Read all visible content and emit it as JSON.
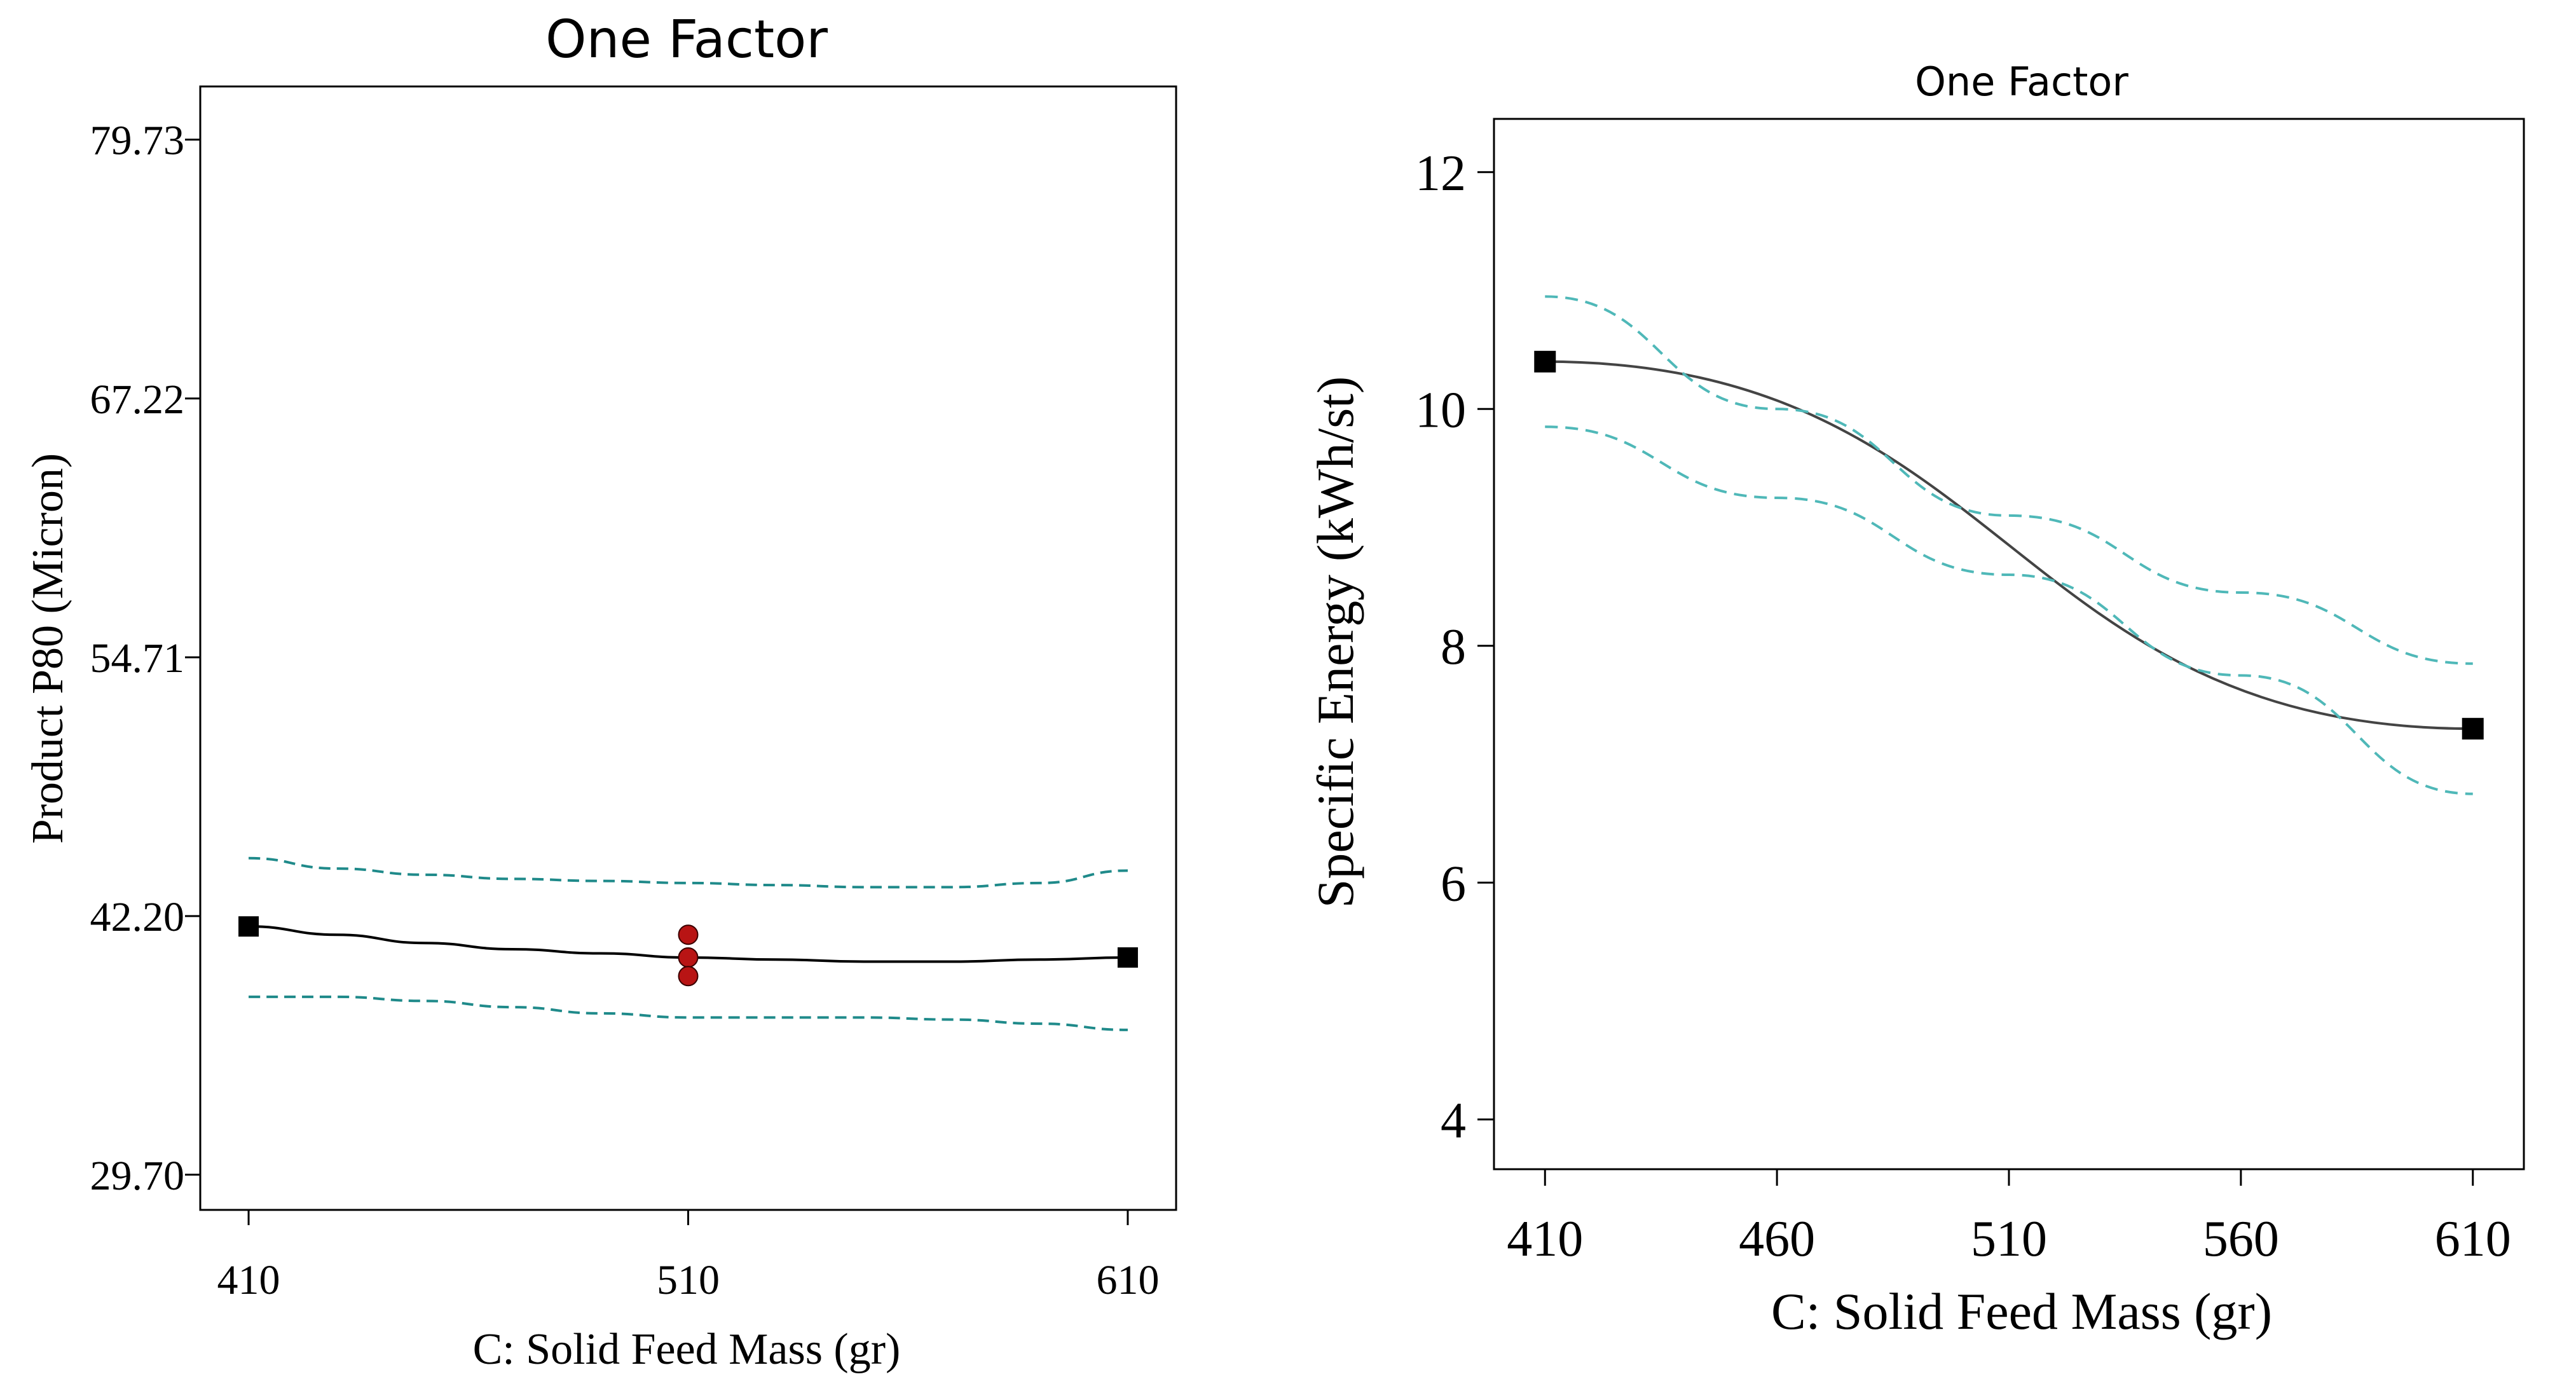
{
  "chart_data": [
    {
      "type": "line",
      "title": "One Factor",
      "xlabel": "C: Solid Feed Mass (gr)",
      "ylabel": "Product P80 (Micron)",
      "xlim": [
        399,
        621
      ],
      "ylim": [
        28.0,
        82.3
      ],
      "x_ticks": [
        "410",
        "510",
        "610"
      ],
      "y_ticks": [
        "29.70",
        "42.20",
        "54.71",
        "67.22",
        "79.73"
      ],
      "grid": false,
      "colors": {
        "prediction": "#000000",
        "confidence": "#1f8a8a",
        "design_points": "#b81414",
        "endpoints": "#000000"
      },
      "series": [
        {
          "x": [
            410,
            430,
            450,
            470,
            490,
            510,
            530,
            550,
            570,
            590,
            610
          ],
          "values": [
            41.7,
            41.3,
            40.9,
            40.6,
            40.4,
            40.2,
            40.1,
            40.0,
            40.0,
            40.1,
            40.2
          ]
        },
        {
          "x": [
            410,
            430,
            450,
            470,
            490,
            510,
            530,
            550,
            570,
            590,
            610
          ],
          "values": [
            45.0,
            44.5,
            44.2,
            44.0,
            43.9,
            43.8,
            43.7,
            43.6,
            43.6,
            43.8,
            44.4
          ]
        },
        {
          "x": [
            410,
            430,
            450,
            470,
            490,
            510,
            530,
            550,
            570,
            590,
            610
          ],
          "values": [
            38.3,
            38.3,
            38.1,
            37.8,
            37.5,
            37.3,
            37.3,
            37.3,
            37.2,
            37.0,
            36.7
          ]
        }
      ],
      "design_points": {
        "x": [
          510,
          510,
          510
        ],
        "values": [
          41.3,
          40.2,
          39.3
        ]
      },
      "endpoints": {
        "x": [
          410,
          610
        ],
        "values": [
          41.7,
          40.2
        ]
      }
    },
    {
      "type": "line",
      "title": "One Factor",
      "xlabel": "C: Solid Feed Mass (gr)",
      "ylabel": "Specific Energy (kWh/st)",
      "xlim": [
        399,
        621
      ],
      "ylim": [
        3.58,
        12.45
      ],
      "x_ticks": [
        "410",
        "460",
        "510",
        "560",
        "610"
      ],
      "y_ticks": [
        "4",
        "6",
        "8",
        "10",
        "12"
      ],
      "grid": false,
      "colors": {
        "prediction": "#444444",
        "confidence": "#4fb8b8",
        "endpoints": "#000000"
      },
      "series": [
        {
          "x": [
            410,
            610
          ],
          "values": [
            10.4,
            7.3
          ]
        },
        {
          "x": [
            410,
            460,
            510,
            560,
            610
          ],
          "values": [
            10.95,
            10.0,
            9.1,
            8.45,
            7.85
          ]
        },
        {
          "x": [
            410,
            460,
            510,
            560,
            610
          ],
          "values": [
            9.85,
            9.25,
            8.6,
            7.75,
            6.75
          ]
        }
      ],
      "endpoints": {
        "x": [
          410,
          610
        ],
        "values": [
          10.4,
          7.3
        ]
      }
    }
  ]
}
